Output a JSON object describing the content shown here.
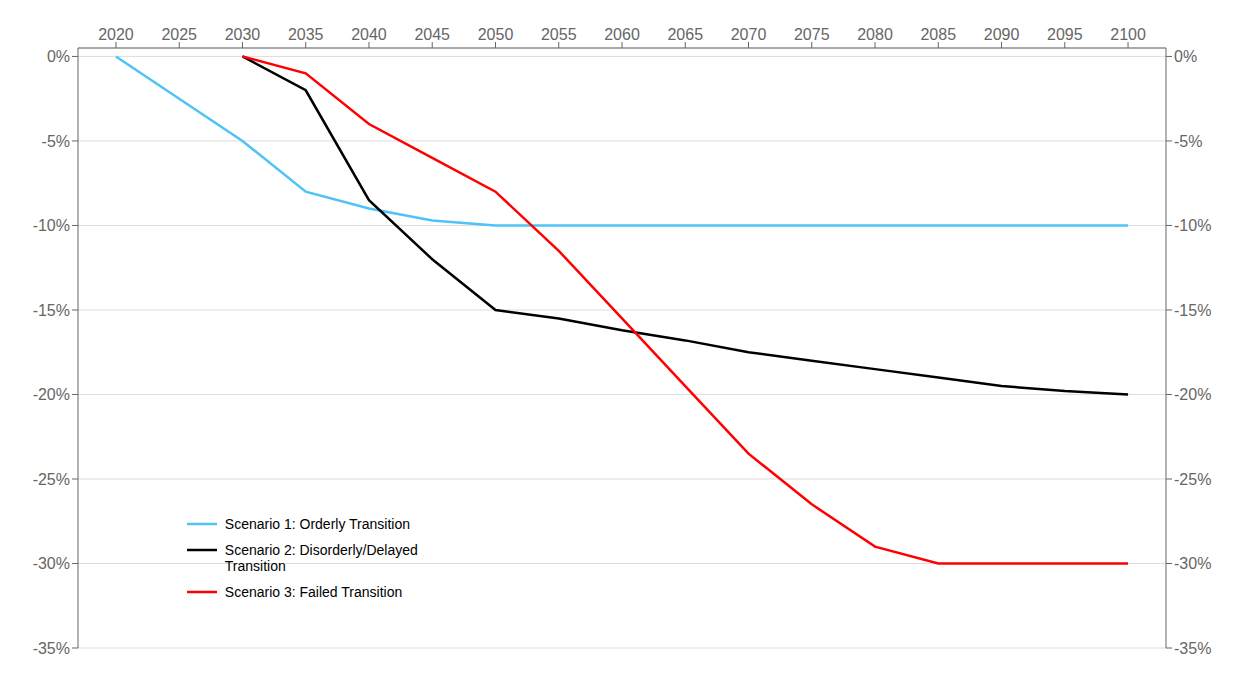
{
  "chart_data": {
    "type": "line",
    "x": [
      2020,
      2025,
      2030,
      2035,
      2040,
      2045,
      2050,
      2055,
      2060,
      2065,
      2070,
      2075,
      2080,
      2085,
      2090,
      2095,
      2100
    ],
    "series": [
      {
        "name": "Scenario 1: Orderly Transition",
        "color": "#4FC3F7",
        "values": [
          0,
          -2.5,
          -5.0,
          -8.0,
          -9.0,
          -9.7,
          -10.0,
          -10.0,
          -10.0,
          -10.0,
          -10.0,
          -10.0,
          -10.0,
          -10.0,
          -10.0,
          -10.0,
          -10.0
        ]
      },
      {
        "name": "Scenario 2: Disorderly/Delayed\nTransition",
        "color": "#000000",
        "values": [
          null,
          null,
          0,
          -2.0,
          -8.5,
          -12.0,
          -15.0,
          -15.5,
          -16.2,
          -16.8,
          -17.5,
          -18.0,
          -18.5,
          -19.0,
          -19.5,
          -19.8,
          -20.0
        ]
      },
      {
        "name": "Scenario 3: Failed Transition",
        "color": "#FF0000",
        "values": [
          null,
          null,
          0,
          -1.0,
          -4.0,
          -6.0,
          -8.0,
          -11.5,
          -15.5,
          -19.5,
          -23.5,
          -26.5,
          -29.0,
          -30.0,
          -30.0,
          -30.0,
          -30.0
        ]
      }
    ],
    "xlim": [
      2017,
      2103
    ],
    "xticks": [
      2020,
      2025,
      2030,
      2035,
      2040,
      2045,
      2050,
      2055,
      2060,
      2065,
      2070,
      2075,
      2080,
      2085,
      2090,
      2095,
      2100
    ],
    "ylim": [
      -35,
      0.5
    ],
    "yticks": [
      {
        "value": 0,
        "label": "0%"
      },
      {
        "value": -5,
        "label": "-5%"
      },
      {
        "value": -10,
        "label": "-10%"
      },
      {
        "value": -15,
        "label": "-15%"
      },
      {
        "value": -20,
        "label": "-20%"
      },
      {
        "value": -25,
        "label": "-25%"
      },
      {
        "value": -30,
        "label": "-30%"
      },
      {
        "value": -35,
        "label": "-35%"
      }
    ],
    "y2lim": [
      -35,
      0.5
    ],
    "y2ticks": [
      {
        "value": 0,
        "label": "0%"
      },
      {
        "value": -5,
        "label": "-5%"
      },
      {
        "value": -10,
        "label": "-10%"
      },
      {
        "value": -15,
        "label": "-15%"
      },
      {
        "value": -20,
        "label": "-20%"
      },
      {
        "value": -25,
        "label": "-25%"
      },
      {
        "value": -30,
        "label": "-30%"
      },
      {
        "value": -35,
        "label": "-35%"
      }
    ],
    "grid": true,
    "legend": "lower left"
  }
}
